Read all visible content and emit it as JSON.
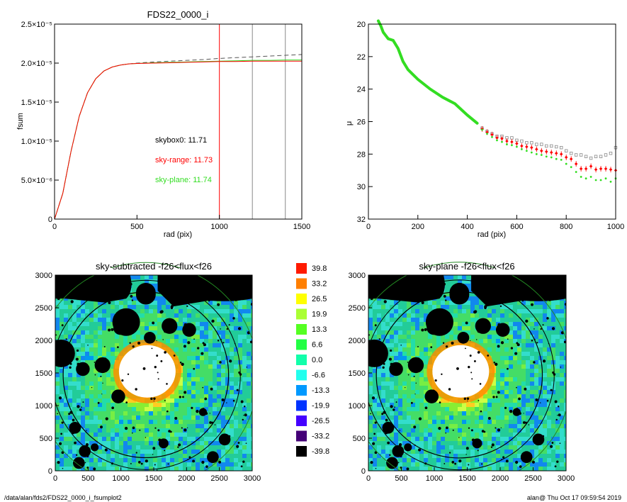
{
  "footer": {
    "path": "/data/alan/fds2/FDS22_0000_i_fsumplot2",
    "stamp": "alan@  Thu Oct 17 09:59:54 2019"
  },
  "colors": {
    "red": "#ff0000",
    "green": "#33dd22",
    "grey": "#888888",
    "dashed": "#555555",
    "black": "#000000"
  },
  "chart_data": [
    {
      "type": "line",
      "title": "FDS22_0000_i",
      "xlabel": "rad (pix)",
      "ylabel": "fsum",
      "xlim": [
        0,
        1500
      ],
      "ylim": [
        0,
        2.5e-05
      ],
      "x_ticks": [
        "0",
        "500",
        "1000",
        "1500"
      ],
      "y_ticks": [
        "0",
        "5.0×10⁻⁶",
        "1.0×10⁻⁵",
        "1.5×10⁻⁵",
        "2.0×10⁻⁵",
        "2.5×10⁻⁵"
      ],
      "vlines": [
        {
          "x": 1000,
          "color": "red"
        },
        {
          "x": 1200,
          "color": "grey"
        },
        {
          "x": 1400,
          "color": "grey"
        }
      ],
      "annotations": [
        {
          "text": "skybox0: 11.71",
          "color": "black"
        },
        {
          "text": "sky-range: 11.73",
          "color": "red"
        },
        {
          "text": "sky-plane: 11.74",
          "color": "green"
        }
      ],
      "series": [
        {
          "style": "dashed",
          "color": "dashed",
          "x": [
            0,
            50,
            100,
            150,
            200,
            250,
            300,
            350,
            400,
            450,
            500,
            600,
            700,
            800,
            900,
            1000,
            1100,
            1200,
            1300,
            1400,
            1500
          ],
          "y": [
            0,
            3.3e-06,
            8.7e-06,
            1.32e-05,
            1.62e-05,
            1.8e-05,
            1.9e-05,
            1.95e-05,
            1.975e-05,
            1.99e-05,
            2e-05,
            2.015e-05,
            2.025e-05,
            2.035e-05,
            2.045e-05,
            2.06e-05,
            2.07e-05,
            2.08e-05,
            2.09e-05,
            2.1e-05,
            2.11e-05
          ]
        },
        {
          "style": "solid",
          "color": "green",
          "x": [
            0,
            50,
            100,
            150,
            200,
            250,
            300,
            350,
            400,
            450,
            500,
            600,
            700,
            800,
            900,
            1000,
            1100,
            1200,
            1300,
            1400,
            1500
          ],
          "y": [
            0,
            3.3e-06,
            8.7e-06,
            1.32e-05,
            1.62e-05,
            1.8e-05,
            1.9e-05,
            1.95e-05,
            1.975e-05,
            1.99e-05,
            1.995e-05,
            2.005e-05,
            2.01e-05,
            2.015e-05,
            2.02e-05,
            2.025e-05,
            2.03e-05,
            2.035e-05,
            2.035e-05,
            2.04e-05,
            2.04e-05
          ]
        },
        {
          "style": "solid",
          "color": "red",
          "x": [
            0,
            50,
            100,
            150,
            200,
            250,
            300,
            350,
            400,
            450,
            500,
            600,
            700,
            800,
            900,
            1000,
            1100,
            1200,
            1300,
            1400,
            1500
          ],
          "y": [
            0,
            3.3e-06,
            8.7e-06,
            1.32e-05,
            1.62e-05,
            1.8e-05,
            1.9e-05,
            1.95e-05,
            1.975e-05,
            1.99e-05,
            1.995e-05,
            2e-05,
            2.005e-05,
            2.01e-05,
            2.015e-05,
            2.02e-05,
            2.02e-05,
            2.025e-05,
            2.025e-05,
            2.025e-05,
            2.025e-05
          ]
        }
      ]
    },
    {
      "type": "scatter",
      "title": "",
      "xlabel": "rad (pix)",
      "ylabel": "μ",
      "xlim": [
        0,
        1000
      ],
      "ylim": [
        32,
        20
      ],
      "x_ticks": [
        "0",
        "200",
        "400",
        "600",
        "800",
        "1000"
      ],
      "y_ticks": [
        "20",
        "22",
        "24",
        "26",
        "28",
        "30",
        "32"
      ],
      "series": [
        {
          "marker": "square-open",
          "color": "grey",
          "x": [
            460,
            480,
            500,
            520,
            540,
            560,
            580,
            600,
            620,
            640,
            660,
            680,
            700,
            720,
            740,
            760,
            780,
            800,
            820,
            840,
            860,
            880,
            900,
            920,
            940,
            960,
            980,
            1000
          ],
          "y": [
            26.4,
            26.6,
            26.75,
            26.9,
            26.9,
            27.0,
            27.0,
            27.15,
            27.2,
            27.3,
            27.3,
            27.4,
            27.4,
            27.5,
            27.5,
            27.55,
            27.6,
            27.8,
            27.95,
            28.05,
            28.05,
            28.15,
            28.25,
            28.15,
            28.15,
            28.05,
            27.95,
            27.6
          ]
        },
        {
          "marker": "diamond-err",
          "color": "red",
          "x": [
            460,
            480,
            500,
            520,
            540,
            560,
            580,
            600,
            620,
            640,
            660,
            680,
            700,
            720,
            740,
            760,
            780,
            800,
            820,
            840,
            860,
            880,
            900,
            920,
            940,
            960,
            980,
            1000
          ],
          "y": [
            26.45,
            26.65,
            26.8,
            27.0,
            27.05,
            27.2,
            27.25,
            27.35,
            27.5,
            27.55,
            27.6,
            27.7,
            27.8,
            27.85,
            27.9,
            27.95,
            28.0,
            28.2,
            28.3,
            28.6,
            28.9,
            28.9,
            28.75,
            28.95,
            28.9,
            28.9,
            28.95,
            29.0
          ]
        },
        {
          "marker": "dot",
          "color": "green",
          "x": [
            460,
            480,
            500,
            520,
            540,
            560,
            580,
            600,
            620,
            640,
            660,
            680,
            700,
            720,
            740,
            760,
            780,
            800,
            820,
            840,
            860,
            880,
            900,
            920,
            940,
            960,
            980,
            1000
          ],
          "y": [
            26.5,
            26.75,
            26.95,
            27.15,
            27.25,
            27.4,
            27.45,
            27.55,
            27.7,
            27.8,
            27.9,
            28.0,
            28.05,
            28.15,
            28.2,
            28.3,
            28.35,
            28.6,
            28.8,
            29.1,
            29.4,
            29.5,
            29.4,
            29.6,
            29.6,
            29.5,
            29.7,
            29.5
          ]
        },
        {
          "marker": "dot-line",
          "color": "green",
          "x": [
            40,
            50,
            60,
            70,
            80,
            100,
            120,
            140,
            160,
            180,
            200,
            250,
            300,
            350,
            400,
            440
          ],
          "y": [
            19.8,
            20.1,
            20.5,
            20.7,
            20.9,
            21.0,
            21.5,
            22.3,
            22.8,
            23.1,
            23.4,
            24.0,
            24.5,
            24.9,
            25.6,
            26.1
          ]
        }
      ]
    },
    {
      "type": "heatmap",
      "title": "sky-subtracted -f26<flux<f26",
      "xlim": [
        0,
        3000
      ],
      "ylim": [
        0,
        3000
      ],
      "x_ticks": [
        "0",
        "500",
        "1000",
        "1500",
        "2000",
        "2500",
        "3000"
      ],
      "y_ticks": [
        "0",
        "500",
        "1000",
        "1500",
        "2000",
        "2500",
        "3000"
      ]
    },
    {
      "type": "heatmap",
      "title": "sky-plane -f26<flux<f26",
      "xlim": [
        0,
        3000
      ],
      "ylim": [
        0,
        3000
      ],
      "x_ticks": [
        "0",
        "500",
        "1000",
        "1500",
        "2000",
        "2500",
        "3000"
      ],
      "y_ticks": [
        "0",
        "500",
        "1000",
        "1500",
        "2000",
        "2500",
        "3000"
      ]
    }
  ],
  "colorbar": {
    "labels": [
      "39.8",
      "33.2",
      "26.5",
      "19.9",
      "13.3",
      "6.6",
      "0.0",
      "-6.6",
      "-13.3",
      "-19.9",
      "-26.5",
      "-33.2",
      "-39.8"
    ],
    "colors": [
      "#ff1a00",
      "#ff7f00",
      "#ffff00",
      "#aaff33",
      "#55ff22",
      "#22ff44",
      "#11ffaa",
      "#22ffee",
      "#0099ff",
      "#0033ff",
      "#4400ff",
      "#440077",
      "#000000"
    ]
  }
}
